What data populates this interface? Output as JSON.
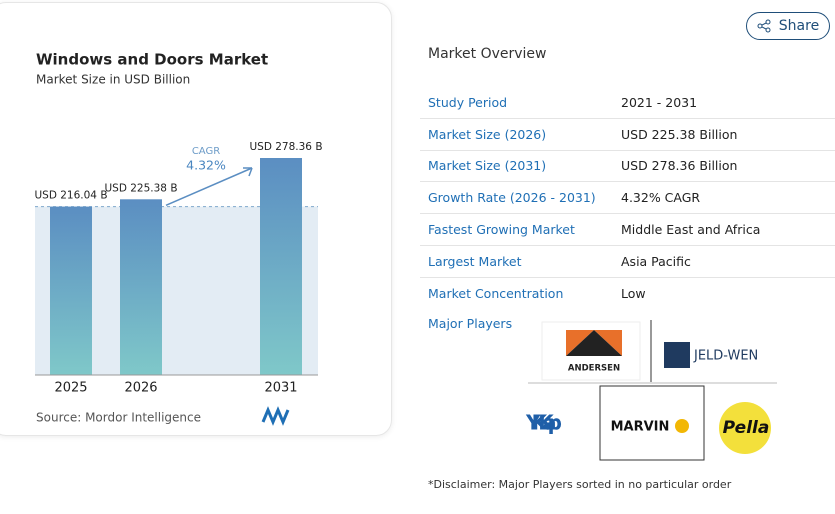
{
  "chart_data": {
    "type": "bar",
    "title": "Windows and Doors Market",
    "subtitle": "Market Size in USD Billion",
    "categories": [
      "2025",
      "2026",
      "2031"
    ],
    "values": [
      216.04,
      225.38,
      278.36
    ],
    "value_labels": [
      "USD 216.04 B",
      "USD 225.38 B",
      "USD 278.36 B"
    ],
    "annotations": [
      "CAGR",
      "4.32%"
    ],
    "source": "Source: Mordor Intelligence"
  },
  "share": "Share",
  "overview": {
    "title": "Market Overview",
    "rows": [
      [
        "Study Period",
        "2021 - 2031"
      ],
      [
        "Market Size (2026)",
        "USD 225.38 Billion"
      ],
      [
        "Market Size (2031)",
        "USD 278.36 Billion"
      ],
      [
        "Growth Rate (2026 - 2031)",
        "4.32% CAGR"
      ],
      [
        "Fastest Growing Market",
        "Middle East and Africa"
      ],
      [
        "Largest Market",
        "Asia Pacific"
      ],
      [
        "Market Concentration",
        "Low"
      ]
    ],
    "players_title": "Major Players",
    "players": [
      "ANDERSEN",
      "JELD-WEN",
      "YKK ap",
      "MARVIN",
      "Pella"
    ],
    "disclaimer": "*Disclaimer: Major Players sorted in no particular order"
  }
}
